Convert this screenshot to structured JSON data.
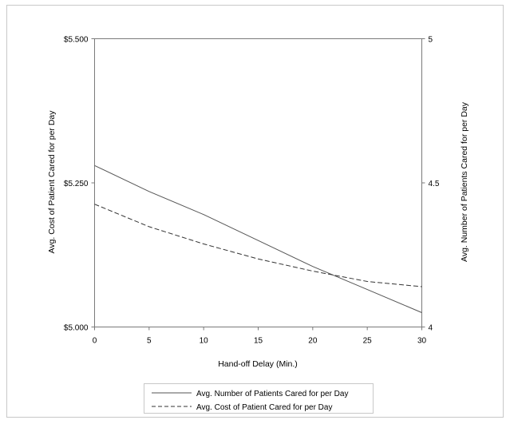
{
  "chart_data": {
    "type": "line",
    "xlabel": "Hand-off Delay (Min.)",
    "ylabel_left": "Avg. Cost of Patient Cared for per Day",
    "ylabel_right": "Avg. Number of Patients Cared for per Day",
    "x_ticks": [
      "0",
      "5",
      "10",
      "15",
      "20",
      "25",
      "30"
    ],
    "y_left_ticks": [
      "$5.000",
      "$5.250",
      "$5.500"
    ],
    "y_right_ticks": [
      "4",
      "4.5",
      "5"
    ],
    "xlim": [
      0,
      30
    ],
    "y_left_lim": [
      5000,
      5500
    ],
    "y_right_lim": [
      4,
      5
    ],
    "grid": false,
    "legend_position": "bottom",
    "series": [
      {
        "name": "Avg. Number of Patients Cared for per Day",
        "axis": "right",
        "style": "solid",
        "color": "#555555",
        "x": [
          0,
          5,
          10,
          15,
          20,
          25,
          30
        ],
        "values": [
          4.56,
          4.47,
          4.39,
          4.3,
          4.21,
          4.13,
          4.05
        ]
      },
      {
        "name": "Avg. Cost of Patient Cared for per Day",
        "axis": "left",
        "style": "dashed",
        "color": "#333333",
        "x": [
          0,
          5,
          10,
          15,
          20,
          25,
          30
        ],
        "values": [
          5213,
          5174,
          5144,
          5118,
          5097,
          5079,
          5070
        ]
      }
    ]
  }
}
